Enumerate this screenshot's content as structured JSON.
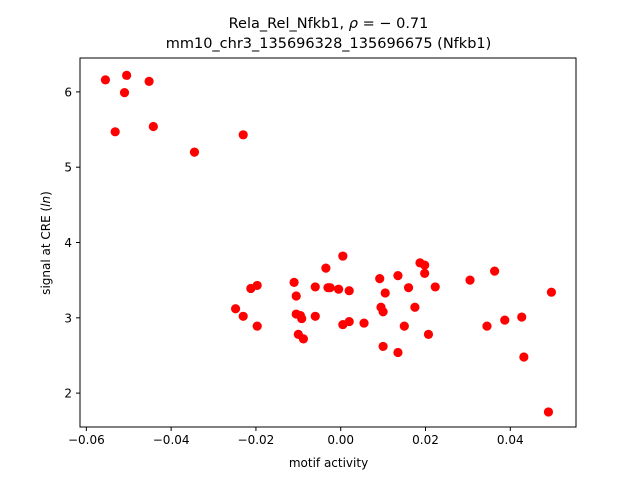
{
  "chart_data": {
    "type": "scatter",
    "title_line1": "Rela_Rel_Nfkb1, ",
    "title_rho_symbol": "ρ",
    "title_rho_value": " = − 0.71",
    "title_line2": "mm10_chr3_135696328_135696675 (Nfkb1)",
    "xlabel": "motif activity",
    "ylabel_prefix": "signal at CRE (",
    "ylabel_italic": "ln",
    "ylabel_suffix": ")",
    "xlim": [
      -0.0615,
      0.0555
    ],
    "ylim": [
      1.55,
      6.45
    ],
    "x_ticks": [
      -0.06,
      -0.04,
      -0.02,
      0.0,
      0.02,
      0.04
    ],
    "x_tick_labels": [
      "−0.06",
      "−0.04",
      "−0.02",
      "0.00",
      "0.02",
      "0.04"
    ],
    "y_ticks": [
      2,
      3,
      4,
      5,
      6
    ],
    "y_tick_labels": [
      "2",
      "3",
      "4",
      "5",
      "6"
    ],
    "grid": false,
    "legend": "none",
    "marker_color": "#ff0000",
    "points": [
      {
        "x": -0.0555,
        "y": 6.16
      },
      {
        "x": -0.0505,
        "y": 6.22
      },
      {
        "x": -0.0452,
        "y": 6.14
      },
      {
        "x": -0.051,
        "y": 5.99
      },
      {
        "x": -0.0532,
        "y": 5.47
      },
      {
        "x": -0.0442,
        "y": 5.54
      },
      {
        "x": -0.023,
        "y": 5.43
      },
      {
        "x": -0.0345,
        "y": 5.2
      },
      {
        "x": -0.0212,
        "y": 3.39
      },
      {
        "x": -0.0197,
        "y": 3.43
      },
      {
        "x": -0.0248,
        "y": 3.12
      },
      {
        "x": -0.023,
        "y": 3.02
      },
      {
        "x": -0.0197,
        "y": 2.89
      },
      {
        "x": -0.011,
        "y": 3.47
      },
      {
        "x": -0.0105,
        "y": 3.29
      },
      {
        "x": -0.0105,
        "y": 3.05
      },
      {
        "x": -0.0095,
        "y": 3.03
      },
      {
        "x": -0.0092,
        "y": 2.99
      },
      {
        "x": -0.01,
        "y": 2.78
      },
      {
        "x": -0.0088,
        "y": 2.72
      },
      {
        "x": -0.006,
        "y": 3.41
      },
      {
        "x": -0.006,
        "y": 3.02
      },
      {
        "x": -0.0035,
        "y": 3.66
      },
      {
        "x": -0.003,
        "y": 3.4
      },
      {
        "x": -0.0025,
        "y": 3.4
      },
      {
        "x": -0.0005,
        "y": 3.38
      },
      {
        "x": 0.0005,
        "y": 3.82
      },
      {
        "x": 0.002,
        "y": 3.36
      },
      {
        "x": 0.0005,
        "y": 2.91
      },
      {
        "x": 0.002,
        "y": 2.95
      },
      {
        "x": 0.0055,
        "y": 2.93
      },
      {
        "x": 0.0092,
        "y": 3.52
      },
      {
        "x": 0.0095,
        "y": 3.14
      },
      {
        "x": 0.01,
        "y": 3.08
      },
      {
        "x": 0.0105,
        "y": 3.33
      },
      {
        "x": 0.01,
        "y": 2.62
      },
      {
        "x": 0.0135,
        "y": 3.56
      },
      {
        "x": 0.0135,
        "y": 2.54
      },
      {
        "x": 0.015,
        "y": 2.89
      },
      {
        "x": 0.016,
        "y": 3.4
      },
      {
        "x": 0.0175,
        "y": 3.14
      },
      {
        "x": 0.0187,
        "y": 3.73
      },
      {
        "x": 0.0198,
        "y": 3.7
      },
      {
        "x": 0.0198,
        "y": 3.59
      },
      {
        "x": 0.0223,
        "y": 3.41
      },
      {
        "x": 0.0207,
        "y": 2.78
      },
      {
        "x": 0.0305,
        "y": 3.5
      },
      {
        "x": 0.0363,
        "y": 3.62
      },
      {
        "x": 0.0345,
        "y": 2.89
      },
      {
        "x": 0.0387,
        "y": 2.97
      },
      {
        "x": 0.0427,
        "y": 3.01
      },
      {
        "x": 0.0432,
        "y": 2.48
      },
      {
        "x": 0.0497,
        "y": 3.34
      },
      {
        "x": 0.049,
        "y": 1.75
      }
    ]
  }
}
